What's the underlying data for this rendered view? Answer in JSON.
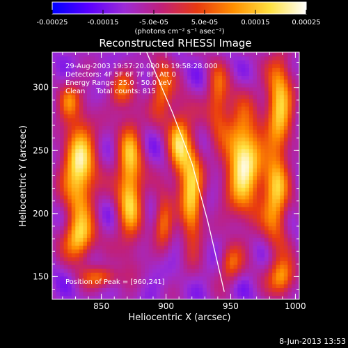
{
  "chart_data": {
    "type": "heatmap",
    "title": "Reconstructed RHESSI Image",
    "xlabel": "Heliocentric X (arcsec)",
    "ylabel": "Heliocentric Y (arcsec)",
    "xlim": [
      812,
      1003
    ],
    "ylim": [
      132,
      328
    ],
    "x_ticks": [
      850,
      900,
      950,
      1000
    ],
    "y_ticks": [
      150,
      200,
      250,
      300
    ],
    "colorbar": {
      "range": [
        -0.00025,
        0.00025
      ],
      "tick_values": [
        -0.00025,
        -0.00015,
        -5e-05,
        5e-05,
        0.00015,
        0.00025
      ],
      "tick_labels": [
        "-0.00025",
        "-0.00015",
        "-5.0e-05",
        "5.0e-05",
        "0.00015",
        "0.00025"
      ],
      "unit_label": "(photons cm⁻² s⁻¹ asec⁻²)",
      "colors": [
        "#0000ff",
        "#5a00ff",
        "#9d2bd6",
        "#c0207a",
        "#e83a10",
        "#ff9000",
        "#ffe040",
        "#ffffff"
      ]
    },
    "info_lines": [
      "29-Aug-2003 19:57:20.000 to 19:58:28.000",
      "Detectors: 4F 5F 6F 7F 8F, Att 0",
      "Energy Range: 25.0 - 50.0 keV",
      "Clean     Total counts: 815"
    ],
    "peak_label": "Position of Peak = [960,241]",
    "limb_curve": [
      [
        885,
        328
      ],
      [
        905,
        280
      ],
      [
        920,
        240
      ],
      [
        932,
        195
      ],
      [
        940,
        160
      ],
      [
        945,
        138
      ]
    ],
    "sources": [
      {
        "x": 960,
        "y": 241,
        "sx": 10,
        "sy": 30,
        "amp": 1.0
      },
      {
        "x": 833,
        "y": 236,
        "sx": 9,
        "sy": 28,
        "amp": 0.95
      },
      {
        "x": 833,
        "y": 180,
        "sx": 8,
        "sy": 12,
        "amp": 0.75
      },
      {
        "x": 872,
        "y": 225,
        "sx": 7,
        "sy": 36,
        "amp": 0.85
      },
      {
        "x": 910,
        "y": 255,
        "sx": 6,
        "sy": 22,
        "amp": 0.7
      },
      {
        "x": 920,
        "y": 215,
        "sx": 6,
        "sy": 30,
        "amp": 0.8
      },
      {
        "x": 898,
        "y": 195,
        "sx": 5,
        "sy": 15,
        "amp": 0.55
      },
      {
        "x": 988,
        "y": 290,
        "sx": 7,
        "sy": 25,
        "amp": 0.8
      },
      {
        "x": 985,
        "y": 215,
        "sx": 7,
        "sy": 28,
        "amp": 0.75
      },
      {
        "x": 940,
        "y": 290,
        "sx": 6,
        "sy": 20,
        "amp": 0.55
      },
      {
        "x": 950,
        "y": 160,
        "sx": 6,
        "sy": 10,
        "amp": 0.5
      },
      {
        "x": 990,
        "y": 150,
        "sx": 7,
        "sy": 10,
        "amp": 0.7
      },
      {
        "x": 825,
        "y": 290,
        "sx": 6,
        "sy": 10,
        "amp": 0.45
      },
      {
        "x": 865,
        "y": 300,
        "sx": 6,
        "sy": 10,
        "amp": 0.45
      },
      {
        "x": 850,
        "y": 150,
        "sx": 10,
        "sy": 6,
        "amp": 0.5
      },
      {
        "x": 897,
        "y": 300,
        "sx": 6,
        "sy": 18,
        "amp": 0.55
      }
    ]
  },
  "footer": {
    "date": "8-Jun-2013 13:53"
  }
}
